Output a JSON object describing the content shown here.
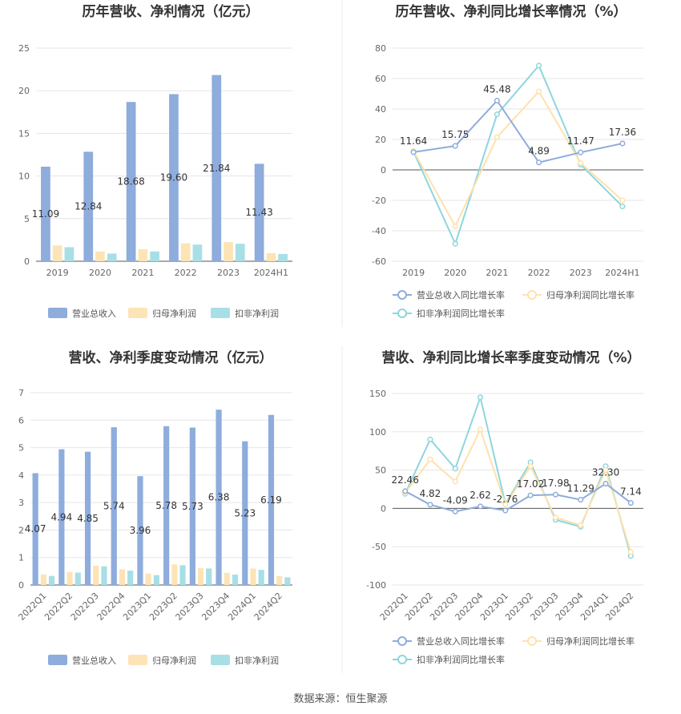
{
  "source": "数据来源：恒生聚源",
  "colors": {
    "revenue": "#8eacdc",
    "parent_np": "#fde4b6",
    "deducted_np": "#a8dfe6",
    "rev_line": "#8eacdc",
    "par_line": "#fde2ac",
    "ded_line": "#8ed6de"
  },
  "chart_data": [
    {
      "type": "bar",
      "title": "历年营收、净利情况（亿元）",
      "categories": [
        "2019",
        "2020",
        "2021",
        "2022",
        "2023",
        "2024H1"
      ],
      "ylim": [
        0,
        25
      ],
      "yticks": [
        0,
        5,
        10,
        15,
        20,
        25
      ],
      "series": [
        {
          "name": "营业总收入",
          "values": [
            11.09,
            12.84,
            18.68,
            19.6,
            21.84,
            11.43
          ],
          "labels": [
            "11.09",
            "12.84",
            "18.68",
            "19.60",
            "21.84",
            "11.43"
          ]
        },
        {
          "name": "归母净利润",
          "values": [
            1.85,
            1.15,
            1.4,
            2.1,
            2.25,
            0.95
          ]
        },
        {
          "name": "扣非净利润",
          "values": [
            1.65,
            0.9,
            1.15,
            1.95,
            2.05,
            0.85
          ]
        }
      ],
      "legend": "bottom"
    },
    {
      "type": "line",
      "title": "历年营收、净利同比增长率情况（%）",
      "categories": [
        "2019",
        "2020",
        "2021",
        "2022",
        "2023",
        "2024H1"
      ],
      "ylim": [
        -60,
        80
      ],
      "yticks": [
        -60,
        -40,
        -20,
        0,
        20,
        40,
        60,
        80
      ],
      "series": [
        {
          "name": "营业总收入同比增长率",
          "values": [
            11.64,
            15.75,
            45.48,
            4.89,
            11.47,
            17.36
          ],
          "labels": [
            "11.64",
            "15.75",
            "45.48",
            "4.89",
            "11.47",
            "17.36"
          ]
        },
        {
          "name": "归母净利润同比增长率",
          "values": [
            12.5,
            -37,
            21.5,
            51.5,
            4.5,
            -20
          ]
        },
        {
          "name": "扣非净利润同比增长率",
          "values": [
            12,
            -48.5,
            36.5,
            68.5,
            3.5,
            -24
          ]
        }
      ],
      "legend": "bottom"
    },
    {
      "type": "bar",
      "title": "营收、净利季度变动情况（亿元）",
      "categories": [
        "2022Q1",
        "2022Q2",
        "2022Q3",
        "2022Q4",
        "2023Q1",
        "2023Q2",
        "2023Q3",
        "2023Q4",
        "2024Q1",
        "2024Q2"
      ],
      "ylim": [
        0,
        7
      ],
      "yticks": [
        0,
        1,
        2,
        3,
        4,
        5,
        6,
        7
      ],
      "series": [
        {
          "name": "营业总收入",
          "values": [
            4.07,
            4.94,
            4.85,
            5.74,
            3.96,
            5.78,
            5.73,
            6.38,
            5.23,
            6.19
          ],
          "labels": [
            "4.07",
            "4.94",
            "4.85",
            "5.74",
            "3.96",
            "5.78",
            "5.73",
            "6.38",
            "5.23",
            "6.19"
          ]
        },
        {
          "name": "归母净利润",
          "values": [
            0.38,
            0.47,
            0.7,
            0.57,
            0.42,
            0.75,
            0.62,
            0.44,
            0.6,
            0.32
          ]
        },
        {
          "name": "扣非净利润",
          "values": [
            0.33,
            0.45,
            0.68,
            0.52,
            0.36,
            0.72,
            0.6,
            0.38,
            0.55,
            0.28
          ]
        }
      ],
      "legend": "bottom"
    },
    {
      "type": "line",
      "title": "营收、净利同比增长率季度变动情况（%）",
      "categories": [
        "2022Q1",
        "2022Q2",
        "2022Q3",
        "2022Q4",
        "2023Q1",
        "2023Q2",
        "2023Q3",
        "2023Q4",
        "2024Q1",
        "2024Q2"
      ],
      "ylim": [
        -100,
        150
      ],
      "yticks": [
        -100,
        -50,
        0,
        50,
        100,
        150
      ],
      "series": [
        {
          "name": "营业总收入同比增长率",
          "values": [
            22.46,
            4.82,
            -4.09,
            2.62,
            -2.76,
            17.02,
            17.98,
            11.29,
            32.3,
            7.14
          ],
          "labels": [
            "22.46",
            "4.82",
            "-4.09",
            "2.62",
            "-2.76",
            "17.02",
            "17.98",
            "11.29",
            "32.30",
            "7.14"
          ]
        },
        {
          "name": "归母净利润同比增长率",
          "values": [
            20,
            64,
            35,
            103,
            5,
            55,
            -12,
            -22,
            50,
            -57
          ]
        },
        {
          "name": "扣非净利润同比增长率",
          "values": [
            19,
            90,
            52,
            145,
            6,
            60,
            -15,
            -24,
            55,
            -62
          ]
        }
      ],
      "legend": "bottom"
    }
  ]
}
